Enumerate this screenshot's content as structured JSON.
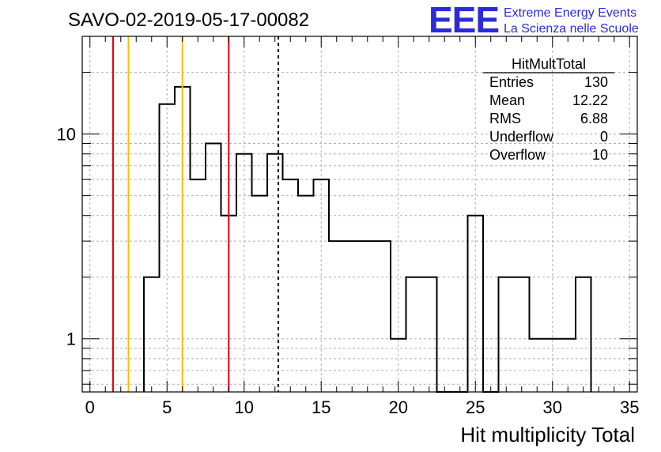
{
  "title": "SAVO-02-2019-05-17-00082",
  "logo": {
    "mark": "EEE",
    "line1": "Extreme Energy Events",
    "line2": "La Scienza nelle Scuole"
  },
  "stats": {
    "name": "HitMultTotal",
    "rows": [
      {
        "label": "Entries",
        "value": "130"
      },
      {
        "label": "Mean",
        "value": "12.22"
      },
      {
        "label": "RMS",
        "value": "6.88"
      },
      {
        "label": "Underflow",
        "value": "0"
      },
      {
        "label": "Overflow",
        "value": "10"
      }
    ]
  },
  "colors": {
    "red": "#e8000b",
    "yellow": "#f0c000",
    "hist": "#000000",
    "grid": "#b0b0b0"
  },
  "chart_data": {
    "type": "histogram",
    "xlabel": "Hit multiplicity Total",
    "ylabel": "",
    "xlim": [
      -0.5,
      35.5
    ],
    "ylim": [
      0.55,
      30
    ],
    "y_scale": "log",
    "grid": true,
    "x_ticks": [
      0,
      5,
      10,
      15,
      20,
      25,
      30,
      35
    ],
    "y_ticks": [
      1,
      10
    ],
    "bin_edges_start": 3.5,
    "bin_width": 1,
    "values": [
      2,
      14,
      17,
      6,
      9,
      4,
      8,
      5,
      8,
      6,
      5,
      6,
      3,
      3,
      3,
      3,
      1,
      2,
      2,
      0,
      0,
      4,
      0,
      2,
      2,
      1,
      1,
      1,
      2
    ],
    "vertical_lines": [
      {
        "x": 1.5,
        "color": "red",
        "style": "solid"
      },
      {
        "x": 2.5,
        "color": "yellow",
        "style": "solid"
      },
      {
        "x": 6.0,
        "color": "yellow",
        "style": "solid"
      },
      {
        "x": 9.0,
        "color": "red",
        "style": "solid"
      },
      {
        "x": 12.22,
        "color": "black",
        "style": "dashed"
      }
    ]
  }
}
